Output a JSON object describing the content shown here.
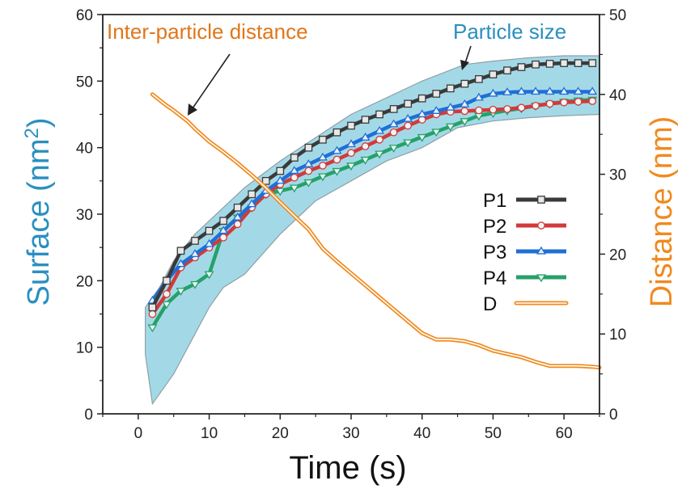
{
  "chart_data": {
    "type": "line",
    "title": "",
    "xlabel": "Time (s)",
    "ylabel_left": "Surface (nm²)",
    "ylabel_left_base": "Surface (nm",
    "ylabel_left_sup": "2",
    "ylabel_left_close": ")",
    "ylabel_right": "Distance (nm)",
    "xlim": [
      -5,
      65
    ],
    "ylim_left": [
      0,
      60
    ],
    "ylim_right": [
      0,
      50
    ],
    "xticks": [
      0,
      10,
      20,
      30,
      40,
      50,
      60
    ],
    "yticks_left": [
      0,
      10,
      20,
      30,
      40,
      50,
      60
    ],
    "yticks_right": [
      0,
      10,
      20,
      30,
      40,
      50
    ],
    "annotations": {
      "distance": "Inter-particle distance",
      "size": "Particle size"
    },
    "colors": {
      "P1": "#3a3a3a",
      "P2": "#d23a3a",
      "P3": "#1f6fd6",
      "P4": "#27a06a",
      "D": "#f08a1e",
      "band": "#9fd8e6",
      "left_axis": "#2a8fc0",
      "right_axis": "#f08a1e"
    },
    "band": {
      "upper": [
        [
          1,
          16
        ],
        [
          3,
          19
        ],
        [
          5,
          23
        ],
        [
          8,
          27
        ],
        [
          10,
          29
        ],
        [
          15,
          34
        ],
        [
          20,
          38
        ],
        [
          25,
          41.5
        ],
        [
          30,
          45
        ],
        [
          35,
          47.5
        ],
        [
          40,
          50
        ],
        [
          46,
          52.5
        ],
        [
          50,
          53
        ],
        [
          55,
          53.5
        ],
        [
          60,
          53.8
        ],
        [
          65,
          53.8
        ]
      ],
      "lower": [
        [
          65,
          45
        ],
        [
          60,
          44.8
        ],
        [
          55,
          44.5
        ],
        [
          50,
          44
        ],
        [
          45,
          43
        ],
        [
          40,
          40
        ],
        [
          35,
          38
        ],
        [
          30,
          35
        ],
        [
          25,
          32
        ],
        [
          20,
          27
        ],
        [
          15,
          21
        ],
        [
          12,
          19
        ],
        [
          10,
          16
        ],
        [
          8,
          12
        ],
        [
          5,
          6
        ],
        [
          3,
          3
        ],
        [
          2,
          1.5
        ],
        [
          1,
          9
        ]
      ]
    },
    "legend": [
      "P1",
      "P2",
      "P3",
      "P4",
      "D"
    ],
    "series": [
      {
        "name": "P1",
        "axis": "left",
        "marker": "square",
        "x": [
          2,
          4,
          6,
          8,
          10,
          12,
          14,
          16,
          18,
          20,
          22,
          24,
          26,
          28,
          30,
          32,
          34,
          36,
          38,
          40,
          42,
          44,
          46,
          48,
          50,
          52,
          54,
          56,
          58,
          60,
          62,
          64
        ],
        "y": [
          16,
          20,
          24.5,
          26,
          27.5,
          29,
          31,
          33,
          35,
          36.5,
          38.5,
          40,
          41.2,
          42.3,
          43.3,
          44.2,
          45,
          45.8,
          46.6,
          47.4,
          48.1,
          48.9,
          49.6,
          50.3,
          51,
          51.6,
          52.1,
          52.5,
          52.6,
          52.7,
          52.7,
          52.7
        ]
      },
      {
        "name": "P2",
        "axis": "left",
        "marker": "circle",
        "x": [
          2,
          4,
          6,
          8,
          10,
          12,
          14,
          16,
          18,
          20,
          22,
          24,
          26,
          28,
          30,
          32,
          34,
          36,
          38,
          40,
          42,
          44,
          46,
          48,
          50,
          52,
          54,
          56,
          58,
          60,
          62,
          64
        ],
        "y": [
          15,
          18,
          22,
          23.5,
          25,
          26.5,
          28.5,
          31,
          33,
          34.5,
          35.5,
          36.5,
          37.3,
          38.2,
          39.2,
          40.2,
          41.2,
          42.3,
          43.3,
          44.2,
          45,
          45.4,
          45.5,
          45.6,
          45.7,
          45.8,
          46,
          46.3,
          46.6,
          46.8,
          46.9,
          47
        ]
      },
      {
        "name": "P3",
        "axis": "left",
        "marker": "triangle-up",
        "x": [
          2,
          4,
          6,
          8,
          10,
          12,
          14,
          16,
          18,
          20,
          22,
          24,
          26,
          28,
          30,
          32,
          34,
          36,
          38,
          40,
          42,
          44,
          46,
          48,
          50,
          52,
          54,
          56,
          58,
          60,
          62,
          64
        ],
        "y": [
          17,
          20,
          22.5,
          24,
          25.5,
          27.5,
          29.5,
          31.5,
          33.5,
          35,
          36.5,
          37.5,
          38.5,
          39.5,
          40.5,
          41.5,
          42.5,
          43.5,
          44.3,
          45,
          45.5,
          46,
          46.5,
          47.5,
          48.1,
          48.3,
          48.4,
          48.4,
          48.4,
          48.4,
          48.4,
          48.4
        ]
      },
      {
        "name": "P4",
        "axis": "left",
        "marker": "triangle-down",
        "x": [
          2,
          4,
          6,
          8,
          10,
          12,
          14,
          16,
          18,
          20,
          22,
          24,
          26,
          28,
          30,
          32,
          34,
          36,
          38,
          40,
          42,
          44,
          46,
          48,
          50,
          52,
          54,
          56,
          58,
          60,
          62,
          64
        ],
        "y": [
          13,
          16.5,
          18.5,
          19.5,
          21,
          27.5,
          29.5,
          31,
          33,
          33.5,
          34,
          34.8,
          35.7,
          36.5,
          37.3,
          38.2,
          39.1,
          40,
          40.8,
          41.6,
          42.4,
          43.2,
          44,
          44.8,
          45.2,
          45.6,
          45.9,
          46.3,
          46.6,
          46.9,
          47.1,
          47.2
        ]
      },
      {
        "name": "D",
        "axis": "right",
        "marker": "none",
        "x": [
          2,
          3,
          4,
          5,
          6,
          7,
          8,
          9,
          10,
          12,
          14,
          16,
          18,
          20,
          22,
          24,
          26,
          28,
          30,
          32,
          34,
          36,
          38,
          40,
          42,
          44,
          46,
          48,
          50,
          52,
          54,
          56,
          58,
          60,
          62,
          64,
          65
        ],
        "y": [
          40,
          39.3,
          38.6,
          38,
          37.3,
          36.6,
          35.7,
          34.9,
          34.1,
          32.8,
          31.4,
          29.9,
          28.3,
          26.5,
          24.8,
          23.1,
          20.7,
          19.1,
          17.6,
          16.1,
          14.6,
          13.1,
          11.6,
          10.1,
          9.3,
          9.3,
          9.1,
          8.6,
          7.9,
          7.5,
          7.1,
          6.5,
          6,
          6,
          6,
          5.9,
          5.8
        ]
      }
    ]
  }
}
